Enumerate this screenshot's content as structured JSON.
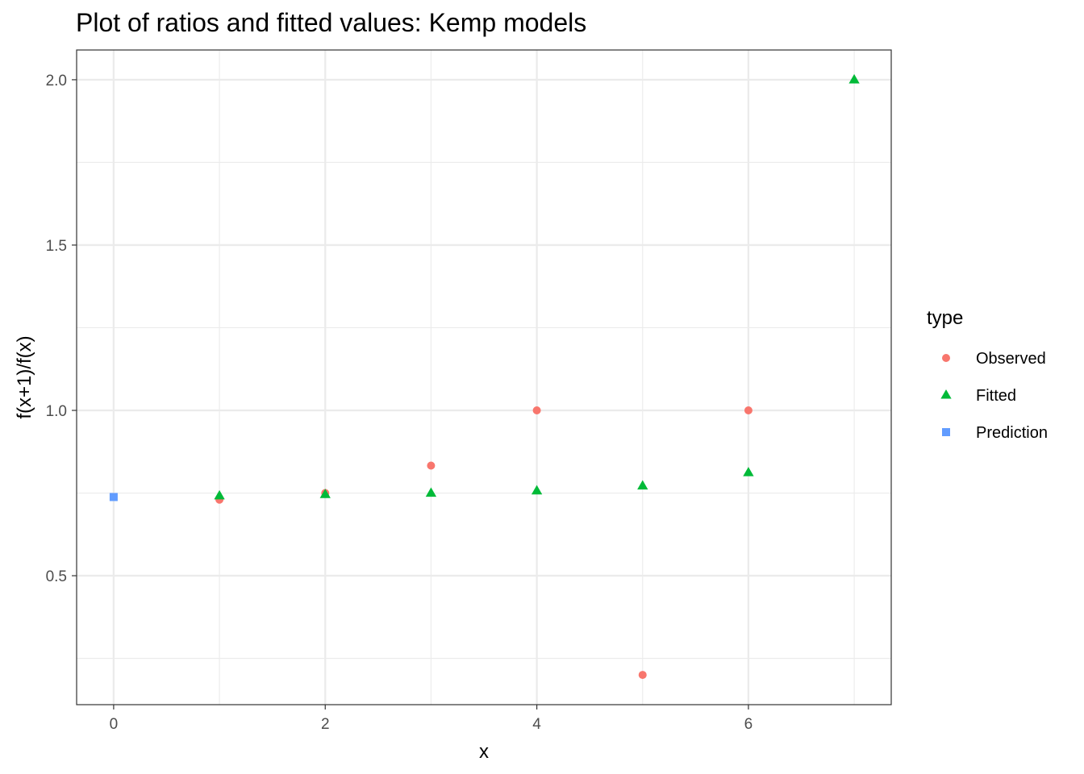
{
  "chart_data": {
    "type": "scatter",
    "title": "Plot of ratios and fitted values: Kemp models",
    "xlabel": "x",
    "ylabel": "f(x+1)/f(x)",
    "xlim": [
      -0.35,
      7.35
    ],
    "ylim": [
      0.11,
      2.09
    ],
    "x_ticks": [
      0,
      2,
      4,
      6
    ],
    "y_ticks": [
      0.5,
      1.0,
      1.5,
      2.0
    ],
    "x_tick_labels": [
      "0",
      "2",
      "4",
      "6"
    ],
    "y_tick_labels": [
      "0.5",
      "1.0",
      "1.5",
      "2.0"
    ],
    "grid": true,
    "legend_title": "type",
    "legend_position": "right",
    "series": [
      {
        "name": "Observed",
        "shape": "circle",
        "color": "#F8766D",
        "x": [
          1,
          2,
          3,
          4,
          5,
          6
        ],
        "y": [
          0.73,
          0.75,
          0.833,
          1.0,
          0.2,
          1.0
        ]
      },
      {
        "name": "Fitted",
        "shape": "triangle",
        "color": "#00BA38",
        "x": [
          1,
          2,
          3,
          4,
          5,
          6,
          7
        ],
        "y": [
          0.742,
          0.746,
          0.75,
          0.757,
          0.772,
          0.812,
          2.0
        ]
      },
      {
        "name": "Prediction",
        "shape": "square",
        "color": "#619CFF",
        "x": [
          0
        ],
        "y": [
          0.738
        ]
      }
    ]
  }
}
